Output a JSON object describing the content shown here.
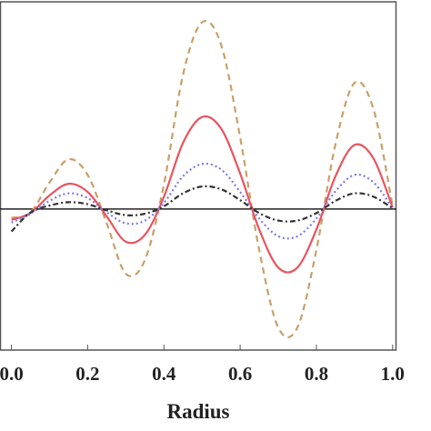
{
  "chart_data": {
    "type": "line",
    "x_label": "Radius",
    "x": [
      0,
      0.05,
      0.1,
      0.15,
      0.2,
      0.25,
      0.3,
      0.35,
      0.4,
      0.45,
      0.5,
      0.55,
      0.6,
      0.65,
      0.7,
      0.75,
      0.8,
      0.85,
      0.9,
      0.95,
      1.0
    ],
    "series": [
      {
        "color": "#c8a06a",
        "dash": "7,5",
        "values": [
          -0.13,
          -0.05,
          0.39,
          0.73,
          0.5,
          -0.21,
          -0.95,
          -0.75,
          0.36,
          1.97,
          2.74,
          2.41,
          1.05,
          -0.6,
          -1.74,
          -1.74,
          -0.6,
          0.95,
          1.85,
          1.46,
          0.04
        ]
      },
      {
        "color": "#e8545f",
        "dash": "none",
        "values": [
          -0.16,
          -0.06,
          0.2,
          0.37,
          0.25,
          -0.11,
          -0.48,
          -0.38,
          0.18,
          0.97,
          1.35,
          1.18,
          0.52,
          -0.3,
          -0.86,
          -0.86,
          -0.3,
          0.48,
          0.94,
          0.74,
          0.02
        ]
      },
      {
        "color": "#7a7ae8",
        "dash": "2,3",
        "values": [
          -0.2,
          -0.07,
          0.12,
          0.23,
          0.16,
          -0.05,
          -0.21,
          -0.17,
          0.09,
          0.48,
          0.66,
          0.58,
          0.25,
          -0.14,
          -0.4,
          -0.4,
          -0.14,
          0.26,
          0.5,
          0.39,
          0.01
        ]
      },
      {
        "color": "#333333",
        "dash": "6,3,2,3",
        "values": [
          -0.33,
          -0.05,
          0.05,
          0.1,
          0.07,
          -0.02,
          -0.09,
          -0.07,
          0.04,
          0.23,
          0.33,
          0.29,
          0.13,
          -0.06,
          -0.17,
          -0.17,
          -0.06,
          0.12,
          0.23,
          0.18,
          0.01
        ]
      }
    ],
    "xlim": [
      -0.03,
      1.01
    ],
    "ylim": [
      -2.07,
      3.04
    ],
    "xticks": [
      {
        "value": 0,
        "label": "0.0"
      },
      0.2,
      0.4,
      0.6,
      0.8,
      {
        "value": 1.0,
        "label": "1.0"
      }
    ]
  }
}
